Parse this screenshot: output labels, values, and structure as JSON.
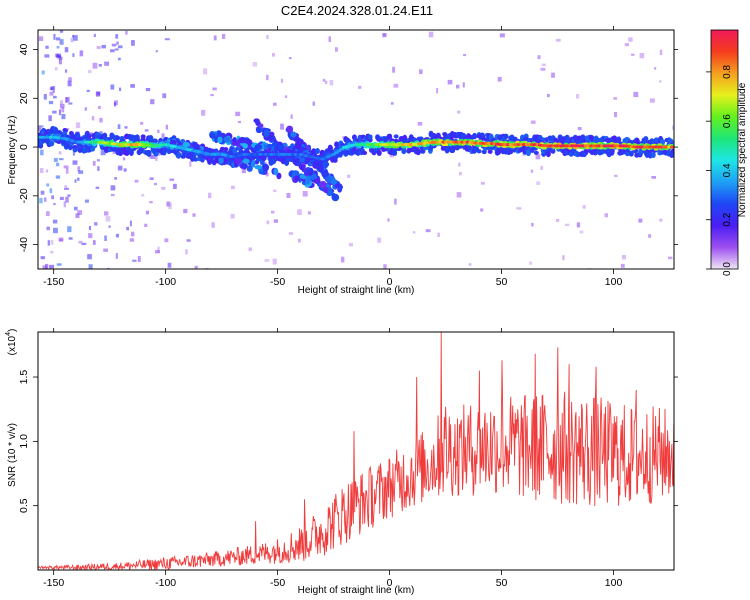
{
  "title": "C2E4.2024.328.01.24.E11",
  "chart_data": [
    {
      "type": "heatmap",
      "xlabel": "Height of straight line (km)",
      "ylabel": "Frequency (Hz)",
      "xlim": [
        -157,
        127
      ],
      "ylim": [
        -50,
        48
      ],
      "xticks": [
        -150,
        -100,
        -50,
        0,
        50,
        100
      ],
      "yticks": [
        -40,
        -20,
        0,
        20,
        40
      ],
      "grid": false,
      "colorbar": {
        "label": "Normalized spectral amplitude",
        "range": [
          0,
          0.97
        ],
        "ticks": [
          0.0,
          0.2,
          0.4,
          0.6,
          0.8
        ],
        "colormap": [
          "#f0e6f5",
          "#9d4ff0",
          "#4b1ef5",
          "#1e46f5",
          "#1ea0f5",
          "#1ee6e6",
          "#1ee678",
          "#64f01e",
          "#e6f01e",
          "#f5a01e",
          "#f53c1e",
          "#f0195a"
        ]
      },
      "ridge": [
        {
          "x": -155,
          "y": 4,
          "a": 0.35
        },
        {
          "x": -150,
          "y": 4,
          "a": 0.4
        },
        {
          "x": -145,
          "y": 3.5,
          "a": 0.35
        },
        {
          "x": -140,
          "y": 2,
          "a": 0.3
        },
        {
          "x": -135,
          "y": 2,
          "a": 0.45
        },
        {
          "x": -130,
          "y": 2,
          "a": 0.6
        },
        {
          "x": -125,
          "y": 1.5,
          "a": 0.65
        },
        {
          "x": -120,
          "y": 1,
          "a": 0.7
        },
        {
          "x": -115,
          "y": 1,
          "a": 0.75
        },
        {
          "x": -110,
          "y": 1,
          "a": 0.7
        },
        {
          "x": -105,
          "y": 0.5,
          "a": 0.6
        },
        {
          "x": -100,
          "y": 1,
          "a": 0.45
        },
        {
          "x": -95,
          "y": 0,
          "a": 0.4
        },
        {
          "x": -90,
          "y": -1,
          "a": 0.4
        },
        {
          "x": -85,
          "y": -2,
          "a": 0.35
        },
        {
          "x": -80,
          "y": -3,
          "a": 0.35
        },
        {
          "x": -75,
          "y": -3,
          "a": 0.35
        },
        {
          "x": -70,
          "y": -4,
          "a": 0.3
        },
        {
          "x": -65,
          "y": -3,
          "a": 0.3
        },
        {
          "x": -60,
          "y": -3,
          "a": 0.3
        },
        {
          "x": -55,
          "y": -3,
          "a": 0.3
        },
        {
          "x": -50,
          "y": -3,
          "a": 0.3
        },
        {
          "x": -45,
          "y": -3,
          "a": 0.3
        },
        {
          "x": -40,
          "y": -3,
          "a": 0.3
        },
        {
          "x": -35,
          "y": -4,
          "a": 0.3
        },
        {
          "x": -30,
          "y": -5,
          "a": 0.3
        },
        {
          "x": -25,
          "y": -3,
          "a": 0.35
        },
        {
          "x": -20,
          "y": 0,
          "a": 0.4
        },
        {
          "x": -15,
          "y": 1,
          "a": 0.45
        },
        {
          "x": -10,
          "y": 1,
          "a": 0.55
        },
        {
          "x": -5,
          "y": 1,
          "a": 0.65
        },
        {
          "x": 0,
          "y": 1,
          "a": 0.7
        },
        {
          "x": 5,
          "y": 1,
          "a": 0.72
        },
        {
          "x": 10,
          "y": 1,
          "a": 0.75
        },
        {
          "x": 15,
          "y": 1.5,
          "a": 0.78
        },
        {
          "x": 20,
          "y": 2,
          "a": 0.8
        },
        {
          "x": 25,
          "y": 2,
          "a": 0.82
        },
        {
          "x": 30,
          "y": 2,
          "a": 0.85
        },
        {
          "x": 35,
          "y": 2,
          "a": 0.85
        },
        {
          "x": 40,
          "y": 1.5,
          "a": 0.85
        },
        {
          "x": 45,
          "y": 1.5,
          "a": 0.85
        },
        {
          "x": 50,
          "y": 1,
          "a": 0.87
        },
        {
          "x": 55,
          "y": 1,
          "a": 0.87
        },
        {
          "x": 60,
          "y": 1,
          "a": 0.88
        },
        {
          "x": 65,
          "y": 1,
          "a": 0.88
        },
        {
          "x": 70,
          "y": 0.5,
          "a": 0.9
        },
        {
          "x": 75,
          "y": 0.5,
          "a": 0.9
        },
        {
          "x": 80,
          "y": 0.5,
          "a": 0.9
        },
        {
          "x": 85,
          "y": 0.5,
          "a": 0.9
        },
        {
          "x": 90,
          "y": 0.5,
          "a": 0.88
        },
        {
          "x": 95,
          "y": 0.5,
          "a": 0.88
        },
        {
          "x": 100,
          "y": 0.5,
          "a": 0.9
        },
        {
          "x": 105,
          "y": 0.5,
          "a": 0.9
        },
        {
          "x": 110,
          "y": 0,
          "a": 0.88
        },
        {
          "x": 115,
          "y": 0,
          "a": 0.85
        },
        {
          "x": 120,
          "y": 0,
          "a": 0.85
        },
        {
          "x": 125,
          "y": 0,
          "a": 0.8
        }
      ],
      "branches": [
        {
          "start": [
            -100,
            2
          ],
          "end": [
            -28,
            -16
          ],
          "a": 0.3
        },
        {
          "start": [
            -80,
            5
          ],
          "end": [
            -30,
            -6
          ],
          "a": 0.3
        },
        {
          "start": [
            -60,
            10
          ],
          "end": [
            -24,
            -20
          ],
          "a": 0.25
        },
        {
          "start": [
            -45,
            7
          ],
          "end": [
            -22,
            -18
          ],
          "a": 0.25
        }
      ]
    },
    {
      "type": "line",
      "xlabel": "Height of straight line (km)",
      "ylabel": "SNR (10 * v/v)",
      "scale_label": "(x10",
      "scale_exponent": "4",
      "xlim": [
        -157,
        127
      ],
      "ylim": [
        0,
        1.85
      ],
      "xticks": [
        -150,
        -100,
        -50,
        0,
        50,
        100
      ],
      "yticks": [
        0.5,
        1.0,
        1.5
      ],
      "grid": false,
      "color": "#f03c3c",
      "envelope": {
        "x": [
          -157,
          -140,
          -120,
          -100,
          -80,
          -60,
          -50,
          -40,
          -30,
          -20,
          -10,
          0,
          10,
          20,
          25,
          30,
          40,
          50,
          60,
          70,
          80,
          90,
          100,
          110,
          120,
          127
        ],
        "mean": [
          0.02,
          0.02,
          0.03,
          0.05,
          0.08,
          0.12,
          0.15,
          0.2,
          0.3,
          0.45,
          0.55,
          0.65,
          0.75,
          0.85,
          0.95,
          0.92,
          0.95,
          0.98,
          0.95,
          0.95,
          0.95,
          0.92,
          0.9,
          0.88,
          0.9,
          0.9
        ],
        "amp": [
          0.01,
          0.02,
          0.03,
          0.05,
          0.06,
          0.08,
          0.1,
          0.15,
          0.2,
          0.25,
          0.25,
          0.25,
          0.28,
          0.3,
          0.4,
          0.35,
          0.38,
          0.4,
          0.42,
          0.45,
          0.45,
          0.45,
          0.42,
          0.4,
          0.38,
          0.35
        ]
      },
      "peaks": [
        {
          "x": 23,
          "y": 1.85
        },
        {
          "x": 75,
          "y": 1.73
        },
        {
          "x": 65,
          "y": 1.68
        },
        {
          "x": 50,
          "y": 1.63
        },
        {
          "x": 80,
          "y": 1.6
        },
        {
          "x": 92,
          "y": 1.58
        },
        {
          "x": 40,
          "y": 1.55
        },
        {
          "x": 12,
          "y": 1.5
        },
        {
          "x": 110,
          "y": 1.4
        },
        {
          "x": -16,
          "y": 1.08
        },
        {
          "x": -60,
          "y": 0.38
        },
        {
          "x": -38,
          "y": 0.55
        }
      ]
    }
  ]
}
